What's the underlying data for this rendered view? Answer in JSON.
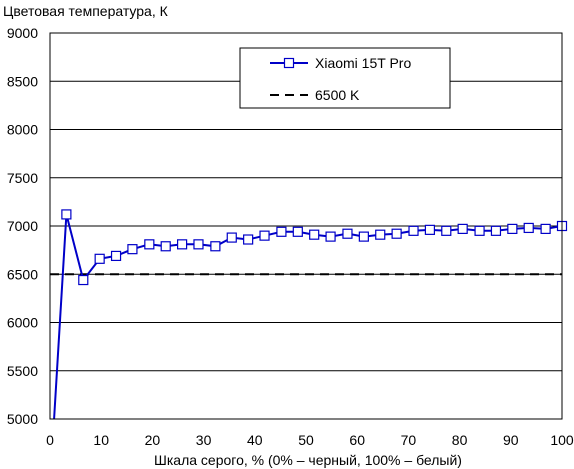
{
  "chart_data": {
    "type": "line",
    "title": "",
    "ylabel": "Цветовая температура, К",
    "xlabel": "Шкала серого, % (0% – черный, 100% – белый)",
    "xlim": [
      0,
      100
    ],
    "ylim": [
      5000,
      9000
    ],
    "xticks": [
      "0",
      "10",
      "20",
      "30",
      "40",
      "50",
      "60",
      "70",
      "80",
      "90",
      "100"
    ],
    "yticks": [
      "5000",
      "5500",
      "6000",
      "6500",
      "7000",
      "7500",
      "8000",
      "8500",
      "9000"
    ],
    "grid": "horizontal",
    "legend_position": "top-right",
    "series": [
      {
        "name": "Xiaomi 15T Pro",
        "color": "#0000c8",
        "marker": "open-square",
        "x": [
          0,
          3.2,
          6.5,
          9.7,
          12.9,
          16.1,
          19.4,
          22.6,
          25.8,
          29.0,
          32.3,
          35.5,
          38.7,
          41.9,
          45.2,
          48.4,
          51.6,
          54.8,
          58.1,
          61.3,
          64.5,
          67.7,
          71.0,
          74.2,
          77.4,
          80.6,
          83.9,
          87.1,
          90.3,
          93.5,
          96.8,
          100
        ],
        "y": [
          4300,
          7120,
          6440,
          6660,
          6690,
          6760,
          6810,
          6790,
          6810,
          6810,
          6790,
          6880,
          6860,
          6900,
          6940,
          6940,
          6910,
          6890,
          6920,
          6890,
          6910,
          6920,
          6950,
          6960,
          6950,
          6970,
          6950,
          6950,
          6970,
          6980,
          6970,
          7000
        ]
      },
      {
        "name": "6500 K",
        "color": "#000000",
        "style": "dashed",
        "x": [
          0,
          100
        ],
        "y": [
          6500,
          6500
        ]
      }
    ]
  }
}
